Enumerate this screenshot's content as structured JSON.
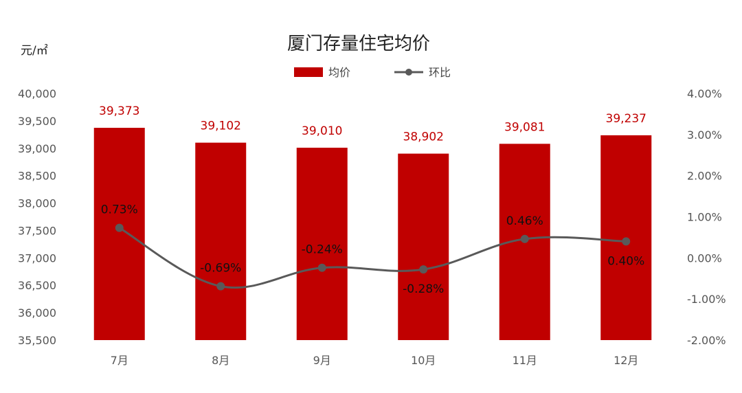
{
  "chart_data": {
    "type": "bar+line",
    "title": "厦门存量住宅均价",
    "y_unit": "元/㎡",
    "categories": [
      "7月",
      "8月",
      "9月",
      "10月",
      "11月",
      "12月"
    ],
    "series": [
      {
        "name": "均价",
        "type": "bar",
        "axis": "left",
        "values": [
          39373,
          39102,
          39010,
          38902,
          39081,
          39237
        ],
        "labels": [
          "39,373",
          "39,102",
          "39,010",
          "38,902",
          "39,081",
          "39,237"
        ]
      },
      {
        "name": "环比",
        "type": "line",
        "axis": "right",
        "values": [
          0.73,
          -0.69,
          -0.24,
          -0.28,
          0.46,
          0.4
        ],
        "labels": [
          "0.73%",
          "-0.69%",
          "-0.24%",
          "-0.28%",
          "0.46%",
          "0.40%"
        ]
      }
    ],
    "y_left": {
      "range": [
        35500,
        40000
      ],
      "ticks": [
        35500,
        36000,
        36500,
        37000,
        37500,
        38000,
        38500,
        39000,
        39500,
        40000
      ],
      "tick_labels": [
        "35,500",
        "36,000",
        "36,500",
        "37,000",
        "37,500",
        "38,000",
        "38,500",
        "39,000",
        "39,500",
        "40,000"
      ]
    },
    "y_right": {
      "range": [
        -2.0,
        4.0
      ],
      "ticks": [
        -2,
        -1,
        0,
        1,
        2,
        3,
        4
      ],
      "tick_labels": [
        "-2.00%",
        "-1.00%",
        "0.00%",
        "1.00%",
        "2.00%",
        "3.00%",
        "4.00%"
      ]
    },
    "legend_position": "top-center",
    "grid": false,
    "colors": {
      "bar": "#c00000",
      "bar_label": "#c00000",
      "line": "#595959"
    }
  }
}
